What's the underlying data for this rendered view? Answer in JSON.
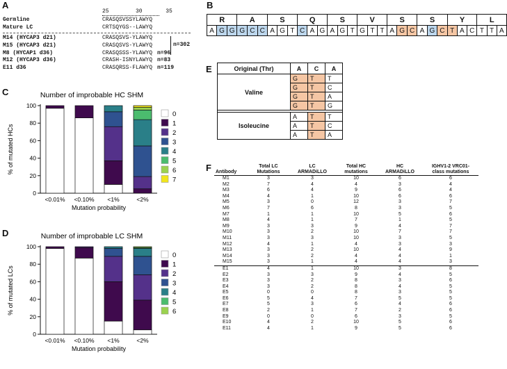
{
  "panel_labels": {
    "a": "A",
    "b": "B",
    "c": "C",
    "d": "D",
    "e": "E",
    "f": "F"
  },
  "panel_a": {
    "position_ruler": "25        30       35",
    "germline": {
      "name": "Germline",
      "seq": "CRASQSVSSYLAWYQ"
    },
    "mature": {
      "name": "Mature LC",
      "seq": "CRTSQYGS--LAWYQ"
    },
    "rows": [
      {
        "name": "M14 (HYCAP3 d21)",
        "seq": "CRASQSVS-YLAWYQ",
        "n": ""
      },
      {
        "name": "M15 (HYCAP3 d21)",
        "seq": "CRASQSVS-YLAWYQ",
        "n": ""
      },
      {
        "name": "M8 (HYCAP1 d36)",
        "seq": "CRASQSSS-YLAWYQ",
        "n": "n=96"
      },
      {
        "name": "M12 (HYCAP3 d36)",
        "seq": "CRASH-ISNYLAWYQ",
        "n": "n=83"
      },
      {
        "name": "E11 d36",
        "seq": "CRASQRSS-FLAWYQ",
        "n": "n=119"
      }
    ],
    "bracket_n": "n=302"
  },
  "panel_b": {
    "amino_acids": [
      "R",
      "A",
      "S",
      "Q",
      "S",
      "V",
      "S",
      "S",
      "Y",
      "L"
    ],
    "nucleotides": [
      "A",
      "G",
      "G",
      "G",
      "C",
      "C",
      "A",
      "G",
      "T",
      "C",
      "A",
      "G",
      "A",
      "G",
      "T",
      "G",
      "T",
      "T",
      "A",
      "G",
      "C",
      "A",
      "G",
      "C",
      "T",
      "A",
      "C",
      "T",
      "T",
      "A"
    ],
    "highlight": [
      "",
      "b",
      "b",
      "b",
      "b",
      "b",
      "",
      "",
      "",
      "b",
      "",
      "",
      "",
      "",
      "",
      "",
      "",
      "",
      "",
      "o",
      "o",
      "",
      "b",
      "o",
      "o",
      "",
      "",
      "",
      "",
      ""
    ],
    "colors": {
      "blue": "#bcd6ec",
      "orange": "#f5c6a4"
    }
  },
  "panel_e": {
    "header": {
      "label": "Original (Thr)",
      "n1": "A",
      "n2": "C",
      "n3": "A"
    },
    "groups": [
      {
        "aa": "Valine",
        "codons": [
          [
            "G",
            "T",
            "T"
          ],
          [
            "G",
            "T",
            "C"
          ],
          [
            "G",
            "T",
            "A"
          ],
          [
            "G",
            "T",
            "G"
          ]
        ]
      },
      {
        "aa": "Isoleucine",
        "codons": [
          [
            "A",
            "T",
            "T"
          ],
          [
            "A",
            "T",
            "C"
          ],
          [
            "A",
            "T",
            "A"
          ]
        ]
      }
    ]
  },
  "panel_c": {
    "chart_data": {
      "type": "bar",
      "stacked": true,
      "title": "Number of improbable HC SHM",
      "xlabel": "Mutation probability",
      "ylabel": "% of mutated HCs",
      "ylim": [
        0,
        100
      ],
      "yticks": [
        0,
        20,
        40,
        60,
        80,
        100
      ],
      "categories": [
        "<0.01%",
        "<0.10%",
        "<1%",
        "<2%"
      ],
      "series": [
        {
          "name": "0",
          "color": "#ffffff",
          "values": [
            97,
            86,
            10,
            0
          ]
        },
        {
          "name": "1",
          "color": "#3f0a4d",
          "values": [
            3,
            14,
            27,
            5
          ]
        },
        {
          "name": "2",
          "color": "#54318a",
          "values": [
            0,
            0,
            39,
            14
          ]
        },
        {
          "name": "3",
          "color": "#2f5290",
          "values": [
            0,
            0,
            17,
            35
          ]
        },
        {
          "name": "4",
          "color": "#2a7f88",
          "values": [
            0,
            0,
            7,
            30
          ]
        },
        {
          "name": "5",
          "color": "#4bbc6e",
          "values": [
            0,
            0,
            0,
            11
          ]
        },
        {
          "name": "6",
          "color": "#9bd24f",
          "values": [
            0,
            0,
            0,
            3
          ]
        },
        {
          "name": "7",
          "color": "#f1e51d",
          "values": [
            0,
            0,
            0,
            2
          ]
        }
      ]
    }
  },
  "panel_d": {
    "chart_data": {
      "type": "bar",
      "stacked": true,
      "title": "Number of improbable LC SHM",
      "xlabel": "Mutation probability",
      "ylabel": "% of mutated LCs",
      "ylim": [
        0,
        100
      ],
      "yticks": [
        0,
        20,
        40,
        60,
        80,
        100
      ],
      "categories": [
        "<0.01%",
        "<0.10%",
        "<1%",
        "<2%"
      ],
      "series": [
        {
          "name": "0",
          "color": "#ffffff",
          "values": [
            98,
            87,
            15,
            5
          ]
        },
        {
          "name": "1",
          "color": "#3f0a4d",
          "values": [
            2,
            12,
            45,
            34
          ]
        },
        {
          "name": "2",
          "color": "#54318a",
          "values": [
            0,
            1,
            29,
            29
          ]
        },
        {
          "name": "3",
          "color": "#2f5290",
          "values": [
            0,
            0,
            9,
            21
          ]
        },
        {
          "name": "4",
          "color": "#2a7f88",
          "values": [
            0,
            0,
            2,
            9
          ]
        },
        {
          "name": "5",
          "color": "#4bbc6e",
          "values": [
            0,
            0,
            0,
            1
          ]
        },
        {
          "name": "6",
          "color": "#9bd24f",
          "values": [
            0,
            0,
            0,
            1
          ]
        }
      ]
    }
  },
  "panel_f": {
    "headers": [
      "Antibody",
      "Total LC\nMutations",
      "LC\nARMADiLLO",
      "Total HC\nmutations",
      "HC\nARMADiLLO",
      "IGHV1-2 VRC01-\nclass mutations"
    ],
    "rows": [
      [
        "M1",
        "3",
        "3",
        "10",
        "6",
        "6"
      ],
      [
        "M2",
        "7",
        "4",
        "4",
        "3",
        "4"
      ],
      [
        "M3",
        "6",
        "4",
        "9",
        "6",
        "4"
      ],
      [
        "M4",
        "4",
        "1",
        "10",
        "6",
        "6"
      ],
      [
        "M5",
        "3",
        "0",
        "12",
        "3",
        "7"
      ],
      [
        "M6",
        "7",
        "6",
        "8",
        "3",
        "5"
      ],
      [
        "M7",
        "1",
        "1",
        "10",
        "5",
        "6"
      ],
      [
        "M8",
        "4",
        "1",
        "7",
        "1",
        "5"
      ],
      [
        "M9",
        "3",
        "3",
        "9",
        "4",
        "7"
      ],
      [
        "M10",
        "3",
        "2",
        "10",
        "7",
        "7"
      ],
      [
        "M11",
        "3",
        "3",
        "10",
        "3",
        "5"
      ],
      [
        "M12",
        "4",
        "1",
        "4",
        "3",
        "3"
      ],
      [
        "M13",
        "3",
        "2",
        "10",
        "4",
        "9"
      ],
      [
        "M14",
        "3",
        "2",
        "4",
        "4",
        "1"
      ],
      [
        "M15",
        "3",
        "1",
        "4",
        "4",
        "3"
      ],
      [
        "E1",
        "4",
        "1",
        "10",
        "3",
        "8"
      ],
      [
        "E2",
        "3",
        "3",
        "9",
        "4",
        "5"
      ],
      [
        "E3",
        "3",
        "2",
        "8",
        "3",
        "6"
      ],
      [
        "E4",
        "3",
        "2",
        "8",
        "4",
        "5"
      ],
      [
        "E5",
        "0",
        "0",
        "8",
        "3",
        "5"
      ],
      [
        "E6",
        "5",
        "4",
        "7",
        "5",
        "5"
      ],
      [
        "E7",
        "5",
        "3",
        "6",
        "4",
        "6"
      ],
      [
        "E8",
        "2",
        "1",
        "7",
        "2",
        "6"
      ],
      [
        "E9",
        "0",
        "0",
        "6",
        "3",
        "5"
      ],
      [
        "E10",
        "4",
        "2",
        "10",
        "5",
        "6"
      ],
      [
        "E11",
        "4",
        "1",
        "9",
        "5",
        "6"
      ]
    ]
  }
}
